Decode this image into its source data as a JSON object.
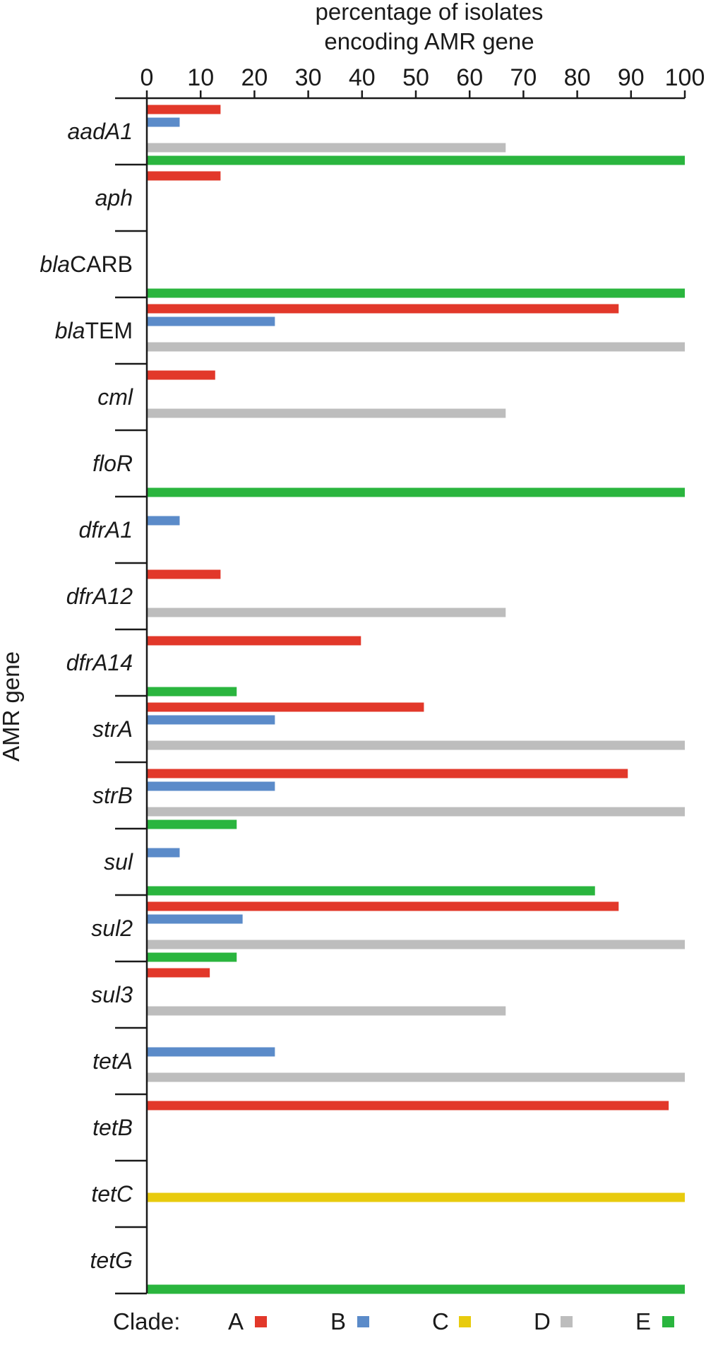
{
  "chart_data": {
    "type": "bar",
    "orientation": "horizontal",
    "xlabel_lines": [
      "percentage of isolates",
      "encoding AMR gene"
    ],
    "ylabel": "AMR gene",
    "xlim": [
      0,
      100
    ],
    "xticks": [
      0,
      10,
      20,
      30,
      40,
      50,
      60,
      70,
      80,
      90,
      100
    ],
    "legend_title": "Clade:",
    "clades": [
      {
        "name": "A",
        "color": "#e2382a"
      },
      {
        "name": "B",
        "color": "#5b8bc9"
      },
      {
        "name": "C",
        "color": "#e8cb0e"
      },
      {
        "name": "D",
        "color": "#bdbdbd"
      },
      {
        "name": "E",
        "color": "#2ab53e"
      }
    ],
    "categories": [
      {
        "gene": "aadA1",
        "label_parts": [
          {
            "text": "aadA1",
            "italic": true
          }
        ],
        "values": {
          "A": 13.7,
          "B": 6.1,
          "C": 0,
          "D": 66.7,
          "E": 100
        }
      },
      {
        "gene": "aph",
        "label_parts": [
          {
            "text": "aph",
            "italic": true
          }
        ],
        "values": {
          "A": 13.7,
          "B": 0,
          "C": 0,
          "D": 0,
          "E": 0
        }
      },
      {
        "gene": "blaCARB",
        "label_parts": [
          {
            "text": "bla",
            "italic": true
          },
          {
            "text": "CARB",
            "italic": false
          }
        ],
        "values": {
          "A": 0,
          "B": 0,
          "C": 0,
          "D": 0,
          "E": 100
        }
      },
      {
        "gene": "blaTEM",
        "label_parts": [
          {
            "text": "bla",
            "italic": true
          },
          {
            "text": "TEM",
            "italic": false
          }
        ],
        "values": {
          "A": 87.7,
          "B": 23.8,
          "C": 0,
          "D": 100,
          "E": 0
        }
      },
      {
        "gene": "cml",
        "label_parts": [
          {
            "text": "cml",
            "italic": true
          }
        ],
        "values": {
          "A": 12.7,
          "B": 0,
          "C": 0,
          "D": 66.7,
          "E": 0
        }
      },
      {
        "gene": "floR",
        "label_parts": [
          {
            "text": "floR",
            "italic": true
          }
        ],
        "values": {
          "A": 0,
          "B": 0,
          "C": 0,
          "D": 0,
          "E": 100
        }
      },
      {
        "gene": "dfrA1",
        "label_parts": [
          {
            "text": "dfrA1",
            "italic": true
          }
        ],
        "values": {
          "A": 0,
          "B": 6.1,
          "C": 0,
          "D": 0,
          "E": 0
        }
      },
      {
        "gene": "dfrA12",
        "label_parts": [
          {
            "text": "dfrA12",
            "italic": true
          }
        ],
        "values": {
          "A": 13.7,
          "B": 0,
          "C": 0,
          "D": 66.7,
          "E": 0
        }
      },
      {
        "gene": "dfrA14",
        "label_parts": [
          {
            "text": "dfrA14",
            "italic": true
          }
        ],
        "values": {
          "A": 39.8,
          "B": 0,
          "C": 0,
          "D": 0,
          "E": 16.7
        }
      },
      {
        "gene": "strA",
        "label_parts": [
          {
            "text": "strA",
            "italic": true
          }
        ],
        "values": {
          "A": 51.5,
          "B": 23.8,
          "C": 0,
          "D": 100,
          "E": 0
        }
      },
      {
        "gene": "strB",
        "label_parts": [
          {
            "text": "strB",
            "italic": true
          }
        ],
        "values": {
          "A": 89.4,
          "B": 23.8,
          "C": 0,
          "D": 100,
          "E": 16.7
        }
      },
      {
        "gene": "sul",
        "label_parts": [
          {
            "text": "sul",
            "italic": true
          }
        ],
        "values": {
          "A": 0,
          "B": 6.1,
          "C": 0,
          "D": 0,
          "E": 83.3
        }
      },
      {
        "gene": "sul2",
        "label_parts": [
          {
            "text": "sul2",
            "italic": true
          }
        ],
        "values": {
          "A": 87.7,
          "B": 17.8,
          "C": 0,
          "D": 100,
          "E": 16.7
        }
      },
      {
        "gene": "sul3",
        "label_parts": [
          {
            "text": "sul3",
            "italic": true
          }
        ],
        "values": {
          "A": 11.7,
          "B": 0,
          "C": 0,
          "D": 66.7,
          "E": 0
        }
      },
      {
        "gene": "tetA",
        "label_parts": [
          {
            "text": "tetA",
            "italic": true
          }
        ],
        "values": {
          "A": 0,
          "B": 23.8,
          "C": 0,
          "D": 100,
          "E": 0
        }
      },
      {
        "gene": "tetB",
        "label_parts": [
          {
            "text": "tetB",
            "italic": true
          }
        ],
        "values": {
          "A": 97.0,
          "B": 0,
          "C": 0,
          "D": 0,
          "E": 0
        }
      },
      {
        "gene": "tetC",
        "label_parts": [
          {
            "text": "tetC",
            "italic": true
          }
        ],
        "values": {
          "A": 0,
          "B": 0,
          "C": 100,
          "D": 0,
          "E": 0
        }
      },
      {
        "gene": "tetG",
        "label_parts": [
          {
            "text": "tetG",
            "italic": true
          }
        ],
        "values": {
          "A": 0,
          "B": 0,
          "C": 0,
          "D": 0,
          "E": 100
        }
      }
    ]
  }
}
